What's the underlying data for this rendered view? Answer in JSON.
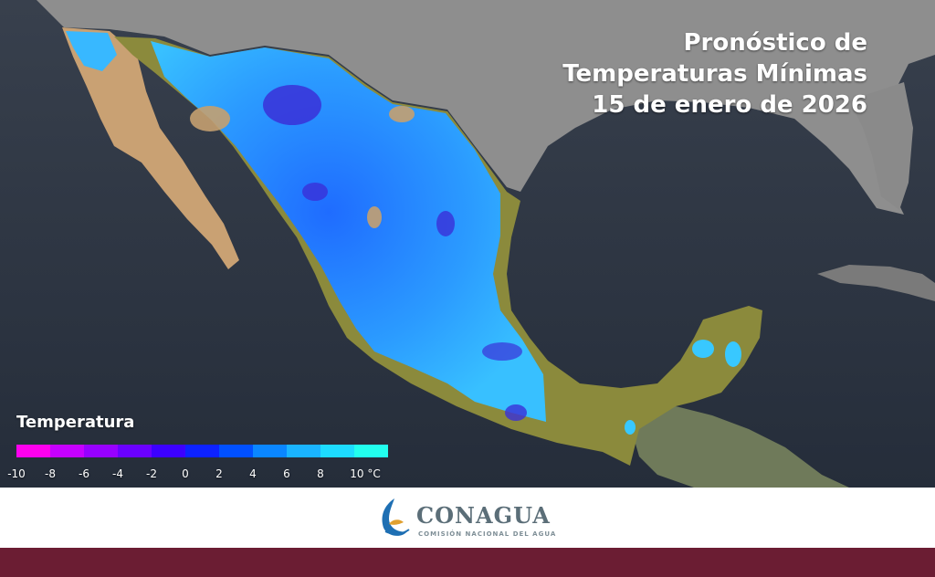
{
  "title": {
    "line1": "Pronóstico de",
    "line2": "Temperaturas Mínimas",
    "line3": "15 de enero de 2026"
  },
  "legend": {
    "title": "Temperatura",
    "colors": [
      "#ff00ee",
      "#c600ff",
      "#9700ff",
      "#6a00ff",
      "#3c00ff",
      "#0d22ff",
      "#0050ff",
      "#0a86ff",
      "#1ab4ff",
      "#1ddcff",
      "#22ffee"
    ],
    "ticks": [
      "-10",
      "-8",
      "-6",
      "-4",
      "-2",
      "0",
      "2",
      "4",
      "6",
      "8",
      "10 °C"
    ]
  },
  "map_colors": {
    "ocean": "#2b3341",
    "land_us": "#8c8c8c",
    "warm_land": "#8a8a3a",
    "desert": "#c4a070",
    "cold_land": "#2f8cff",
    "very_cold": "#3a30d8"
  },
  "footer": {
    "brand": "CONAGUA",
    "subtitle": "COMISIÓN NACIONAL DEL AGUA"
  },
  "colors": {
    "bottom_bar": "#6b1d33",
    "brand_text": "#5b6e78"
  }
}
